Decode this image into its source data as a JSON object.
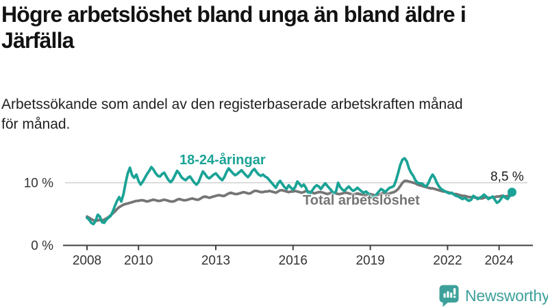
{
  "header": {
    "title_line1": "Högre arbetslöshet bland unga än bland äldre i",
    "title_line2": "Järfälla",
    "subtitle_line1": "Arbetssökande som andel av den registerbaserade arbetskraften månad",
    "subtitle_line2": "för månad."
  },
  "branding": {
    "wordmark": "Newsworthy",
    "logo_icon": "speech-bubble-with-bar-chart-and-exclamation",
    "brand_color": "#3da09a"
  },
  "colors": {
    "youth_line": "#1aa396",
    "total_line": "#757575",
    "gridline": "#dcdcdc",
    "axis": "#404040",
    "tick_text": "#333333"
  },
  "chart_data": {
    "type": "line",
    "title": "Högre arbetslöshet bland unga än bland äldre i Järfälla",
    "subtitle": "Arbetssökande som andel av den registerbaserade arbetskraften månad för månad.",
    "frequency": "monthly",
    "x_start": {
      "year": 2008,
      "month": 1
    },
    "x_end": {
      "year": 2024,
      "month": 7
    },
    "x_ticks": [
      2008,
      2010,
      2013,
      2016,
      2019,
      2022,
      2024
    ],
    "y_ticks": [
      {
        "value": 0,
        "label": "0 %"
      },
      {
        "value": 10,
        "label": "10 %"
      }
    ],
    "ylim": [
      0,
      15
    ],
    "grid": "horizontal, only at 10 %",
    "legend_position": "inline labels on lines",
    "annotation": {
      "text": "8,5 %",
      "value": 8.5,
      "series": "18-24-åringar",
      "position": "end of series"
    },
    "series": [
      {
        "name": "Total arbetslöshet",
        "color": "#757575",
        "end_dot": false,
        "values": [
          4.6,
          4.4,
          4.2,
          4.0,
          3.9,
          4.0,
          4.1,
          4.0,
          4.1,
          4.3,
          4.5,
          4.8,
          5.1,
          5.4,
          5.8,
          6.1,
          6.3,
          6.5,
          6.6,
          6.7,
          6.8,
          6.9,
          7.0,
          7.1,
          7.1,
          7.2,
          7.2,
          7.1,
          7.0,
          7.1,
          7.2,
          7.3,
          7.2,
          7.1,
          7.1,
          7.2,
          7.3,
          7.2,
          7.1,
          7.0,
          7.0,
          7.1,
          7.3,
          7.4,
          7.3,
          7.2,
          7.2,
          7.3,
          7.4,
          7.5,
          7.4,
          7.3,
          7.3,
          7.5,
          7.7,
          7.8,
          7.7,
          7.6,
          7.7,
          7.8,
          7.9,
          8.0,
          8.0,
          7.9,
          7.9,
          8.1,
          8.3,
          8.4,
          8.3,
          8.2,
          8.2,
          8.3,
          8.4,
          8.5,
          8.4,
          8.3,
          8.3,
          8.5,
          8.7,
          8.7,
          8.6,
          8.5,
          8.5,
          8.6,
          8.6,
          8.7,
          8.6,
          8.5,
          8.4,
          8.6,
          8.8,
          8.8,
          8.7,
          8.6,
          8.5,
          8.6,
          8.6,
          8.7,
          8.6,
          8.5,
          8.4,
          8.5,
          8.7,
          8.6,
          8.5,
          8.4,
          8.3,
          8.4,
          8.5,
          8.5,
          8.4,
          8.3,
          8.2,
          8.3,
          8.5,
          8.4,
          8.3,
          8.2,
          8.2,
          8.3,
          8.4,
          8.4,
          8.3,
          8.2,
          8.1,
          8.2,
          8.3,
          8.2,
          8.1,
          8.0,
          8.0,
          8.1,
          8.2,
          8.1,
          8.0,
          8.0,
          8.1,
          8.2,
          8.4,
          8.3,
          8.2,
          8.3,
          8.4,
          8.5,
          8.7,
          9.0,
          9.5,
          10.0,
          10.3,
          10.3,
          10.2,
          10.1,
          10.0,
          9.9,
          9.7,
          9.6,
          9.5,
          9.4,
          9.3,
          9.2,
          9.1,
          9.1,
          9.0,
          8.9,
          8.8,
          8.7,
          8.6,
          8.6,
          8.5,
          8.4,
          8.3,
          8.2,
          8.2,
          8.1,
          8.0,
          7.9,
          7.9,
          7.8,
          7.7,
          7.7,
          7.7,
          7.6,
          7.6,
          7.5,
          7.5,
          7.6,
          7.7,
          7.6,
          7.6,
          7.7,
          7.7,
          7.8,
          7.8,
          7.9,
          7.9,
          7.8,
          7.9,
          8.0,
          8.0
        ]
      },
      {
        "name": "18-24-åringar",
        "color": "#1aa396",
        "end_dot": true,
        "values": [
          4.4,
          4.1,
          3.6,
          3.4,
          3.9,
          4.9,
          4.6,
          3.7,
          3.6,
          4.1,
          4.4,
          4.7,
          5.4,
          6.3,
          7.1,
          7.7,
          7.0,
          8.2,
          10.0,
          11.5,
          12.4,
          11.2,
          10.8,
          11.3,
          10.3,
          9.7,
          10.2,
          10.8,
          11.4,
          11.9,
          12.5,
          12.1,
          11.5,
          11.1,
          11.0,
          11.4,
          11.6,
          11.0,
          10.4,
          10.1,
          10.5,
          11.2,
          11.9,
          11.5,
          10.9,
          10.6,
          10.4,
          10.8,
          11.0,
          10.5,
          10.0,
          9.7,
          10.1,
          11.0,
          11.8,
          11.4,
          10.9,
          10.7,
          11.0,
          11.3,
          11.5,
          11.1,
          10.7,
          10.4,
          10.9,
          11.7,
          12.3,
          11.9,
          11.5,
          11.2,
          11.4,
          11.7,
          12.0,
          11.6,
          11.2,
          10.9,
          11.3,
          11.9,
          12.2,
          11.7,
          11.3,
          11.1,
          11.3,
          11.0,
          10.8,
          10.4,
          10.0,
          9.6,
          9.2,
          9.9,
          10.3,
          9.8,
          9.3,
          9.0,
          9.6,
          9.2,
          8.9,
          9.3,
          10.2,
          9.8,
          9.4,
          9.7,
          9.2,
          8.4,
          8.3,
          8.8,
          9.3,
          9.6,
          9.4,
          9.0,
          9.5,
          9.9,
          9.5,
          9.1,
          8.7,
          8.3,
          8.6,
          10.0,
          9.3,
          8.9,
          8.7,
          9.1,
          9.4,
          9.0,
          8.7,
          8.9,
          9.2,
          8.9,
          8.6,
          8.4,
          8.6,
          8.3,
          7.9,
          7.6,
          7.8,
          8.2,
          8.6,
          9.0,
          8.8,
          8.5,
          8.9,
          9.2,
          9.3,
          9.5,
          10.4,
          11.6,
          12.9,
          13.7,
          13.9,
          13.4,
          12.3,
          11.6,
          11.1,
          10.4,
          10.0,
          9.9,
          9.9,
          9.6,
          9.4,
          9.9,
          10.7,
          11.3,
          10.8,
          10.0,
          9.4,
          9.0,
          8.8,
          8.6,
          8.4,
          8.3,
          8.4,
          8.1,
          7.9,
          7.8,
          7.6,
          7.4,
          7.6,
          7.3,
          7.1,
          7.3,
          7.9,
          7.7,
          7.4,
          7.6,
          7.8,
          8.1,
          7.8,
          7.4,
          7.6,
          7.8,
          7.3,
          6.8,
          7.0,
          7.5,
          7.9,
          7.6,
          7.4,
          7.9,
          8.5
        ]
      }
    ]
  }
}
